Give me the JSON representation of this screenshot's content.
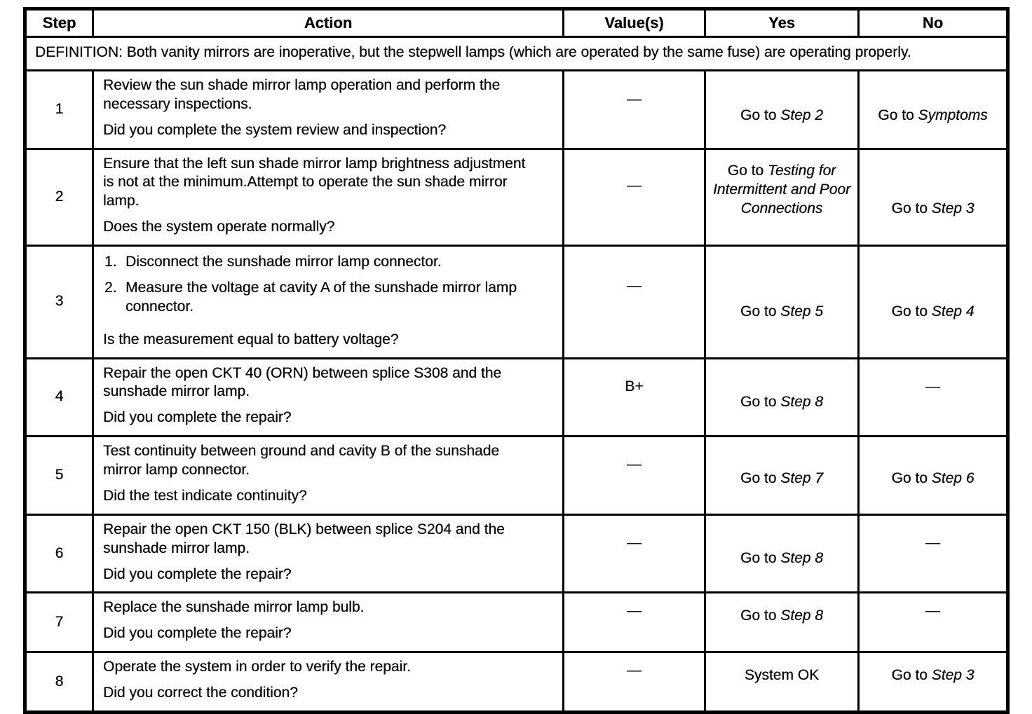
{
  "table": {
    "headers": {
      "step": "Step",
      "action": "Action",
      "values": "Value(s)",
      "yes": "Yes",
      "no": "No"
    },
    "definition": "DEFINITION: Both vanity mirrors are inoperative, but the stepwell lamps (which are operated by the same fuse) are operating properly.",
    "rows": [
      {
        "step": "1",
        "paragraphs": [
          "Review the sun shade mirror lamp operation and perform the necessary inspections."
        ],
        "question": "Did you complete the system review and inspection?",
        "value": "—",
        "yes": {
          "prefix": "Go to ",
          "ref": "Step 2"
        },
        "no": {
          "prefix": "Go to ",
          "ref": "Symptoms"
        }
      },
      {
        "step": "2",
        "paragraphs": [
          "Ensure that the left sun shade mirror lamp brightness adjustment is not at the minimum.Attempt to operate the sun shade mirror lamp."
        ],
        "question": "Does the system operate normally?",
        "value": "—",
        "yes": {
          "prefix": "Go to ",
          "ref": "Testing for Intermittent and Poor Connections"
        },
        "no": {
          "prefix": "Go to ",
          "ref": "Step 3"
        }
      },
      {
        "step": "3",
        "list": [
          {
            "num": "1.",
            "text": "Disconnect the sunshade mirror lamp connector."
          },
          {
            "num": "2.",
            "text": "Measure the voltage at cavity A of the sunshade mirror lamp connector."
          }
        ],
        "question": "Is the measurement equal to battery voltage?",
        "value": "—",
        "yes": {
          "prefix": "Go to ",
          "ref": "Step 5"
        },
        "no": {
          "prefix": "Go to ",
          "ref": "Step 4"
        }
      },
      {
        "step": "4",
        "paragraphs": [
          "Repair the open CKT 40 (ORN) between splice S308 and the sunshade mirror lamp."
        ],
        "question": "Did you complete the repair?",
        "value": "B+",
        "yes": {
          "prefix": "Go to ",
          "ref": "Step 8"
        },
        "no": {
          "prefix": "—",
          "ref": ""
        }
      },
      {
        "step": "5",
        "paragraphs": [
          "Test continuity between ground and cavity B of the sunshade mirror lamp connector."
        ],
        "question": "Did the test indicate continuity?",
        "value": "—",
        "yes": {
          "prefix": "Go to ",
          "ref": "Step 7"
        },
        "no": {
          "prefix": "Go to ",
          "ref": "Step 6"
        }
      },
      {
        "step": "6",
        "paragraphs": [
          "Repair the open CKT 150 (BLK) between splice S204 and the sunshade mirror lamp."
        ],
        "question": "Did you complete the repair?",
        "value": "—",
        "yes": {
          "prefix": "Go to ",
          "ref": "Step 8"
        },
        "no": {
          "prefix": "—",
          "ref": ""
        }
      },
      {
        "step": "7",
        "paragraphs": [
          "Replace the sunshade mirror lamp bulb."
        ],
        "question": "Did you complete the repair?",
        "value": "—",
        "yes": {
          "prefix": "Go to ",
          "ref": "Step 8"
        },
        "no": {
          "prefix": "—",
          "ref": ""
        }
      },
      {
        "step": "8",
        "paragraphs": [
          "Operate the system in order to verify the repair."
        ],
        "question": "Did you correct the condition?",
        "value": "—",
        "yes": {
          "prefix": "System OK",
          "ref": ""
        },
        "no": {
          "prefix": "Go to ",
          "ref": "Step 3"
        }
      }
    ]
  },
  "colors": {
    "ink": "#0a0a0a",
    "paper": "#ffffff"
  }
}
